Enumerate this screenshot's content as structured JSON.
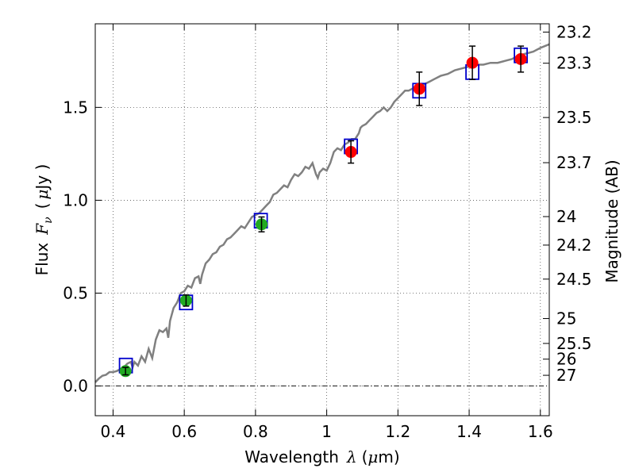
{
  "chart_data": {
    "type": "scatter",
    "xlabel_text": "Wavelength",
    "xlabel_symbol": "λ",
    "xlabel_unit_open": "(",
    "xlabel_unit_mu": "μ",
    "xlabel_unit_rest": "m)",
    "ylabel_text": "Flux",
    "ylabel_symbol": "F",
    "ylabel_sub": "ν",
    "ylabel_unit_open": "(",
    "ylabel_unit_mu": "μ",
    "ylabel_unit_rest": "Jy )",
    "y2label": "Magnitude (AB)",
    "xlim": [
      0.35,
      1.625
    ],
    "ylim": [
      -0.16,
      1.95
    ],
    "grid": true,
    "x_ticks": [
      {
        "value": 0.4,
        "label": "0.4"
      },
      {
        "value": 0.6,
        "label": "0.6"
      },
      {
        "value": 0.8,
        "label": "0.8"
      },
      {
        "value": 1.0,
        "label": "1"
      },
      {
        "value": 1.2,
        "label": "1.2"
      },
      {
        "value": 1.4,
        "label": "1.4"
      },
      {
        "value": 1.6,
        "label": "1.6"
      }
    ],
    "y_ticks": [
      {
        "value": 0.0,
        "label": "0.0"
      },
      {
        "value": 0.5,
        "label": "0.5"
      },
      {
        "value": 1.0,
        "label": "1.0"
      },
      {
        "value": 1.5,
        "label": "1.5"
      }
    ],
    "mag_ticks": [
      {
        "value": 23.2,
        "label": "23.2"
      },
      {
        "value": 23.3,
        "label": "23.3"
      },
      {
        "value": 23.5,
        "label": "23.5"
      },
      {
        "value": 23.7,
        "label": "23.7"
      },
      {
        "value": 24,
        "label": "24"
      },
      {
        "value": 24.2,
        "label": "24.2"
      },
      {
        "value": 24.5,
        "label": "24.5"
      },
      {
        "value": 25,
        "label": "25"
      },
      {
        "value": 25.5,
        "label": "25.5"
      },
      {
        "value": 26,
        "label": "26"
      },
      {
        "value": 27,
        "label": "27"
      }
    ],
    "colors": {
      "model": "#808080",
      "model_points": "#0000cc",
      "optical": "#22aa22",
      "nir": "#ff0000",
      "error": "#000000",
      "grid": "#555555",
      "zero_line": "#000000"
    },
    "model_spectrum": [
      [
        0.35,
        0.02
      ],
      [
        0.36,
        0.04
      ],
      [
        0.37,
        0.055
      ],
      [
        0.38,
        0.06
      ],
      [
        0.39,
        0.075
      ],
      [
        0.4,
        0.075
      ],
      [
        0.41,
        0.08
      ],
      [
        0.42,
        0.09
      ],
      [
        0.43,
        0.1
      ],
      [
        0.44,
        0.12
      ],
      [
        0.45,
        0.13
      ],
      [
        0.455,
        0.1
      ],
      [
        0.46,
        0.13
      ],
      [
        0.47,
        0.11
      ],
      [
        0.48,
        0.16
      ],
      [
        0.49,
        0.13
      ],
      [
        0.5,
        0.2
      ],
      [
        0.51,
        0.15
      ],
      [
        0.52,
        0.25
      ],
      [
        0.53,
        0.3
      ],
      [
        0.54,
        0.29
      ],
      [
        0.55,
        0.31
      ],
      [
        0.555,
        0.26
      ],
      [
        0.56,
        0.35
      ],
      [
        0.57,
        0.42
      ],
      [
        0.58,
        0.45
      ],
      [
        0.59,
        0.5
      ],
      [
        0.6,
        0.51
      ],
      [
        0.61,
        0.54
      ],
      [
        0.62,
        0.53
      ],
      [
        0.63,
        0.58
      ],
      [
        0.64,
        0.59
      ],
      [
        0.645,
        0.55
      ],
      [
        0.65,
        0.6
      ],
      [
        0.66,
        0.66
      ],
      [
        0.67,
        0.68
      ],
      [
        0.68,
        0.71
      ],
      [
        0.69,
        0.72
      ],
      [
        0.7,
        0.75
      ],
      [
        0.71,
        0.76
      ],
      [
        0.72,
        0.79
      ],
      [
        0.73,
        0.8
      ],
      [
        0.74,
        0.82
      ],
      [
        0.75,
        0.84
      ],
      [
        0.76,
        0.86
      ],
      [
        0.77,
        0.85
      ],
      [
        0.78,
        0.88
      ],
      [
        0.79,
        0.91
      ],
      [
        0.8,
        0.92
      ],
      [
        0.81,
        0.93
      ],
      [
        0.82,
        0.95
      ],
      [
        0.83,
        0.97
      ],
      [
        0.84,
        0.99
      ],
      [
        0.85,
        1.03
      ],
      [
        0.86,
        1.04
      ],
      [
        0.87,
        1.06
      ],
      [
        0.88,
        1.08
      ],
      [
        0.89,
        1.07
      ],
      [
        0.9,
        1.11
      ],
      [
        0.91,
        1.14
      ],
      [
        0.92,
        1.13
      ],
      [
        0.93,
        1.15
      ],
      [
        0.94,
        1.18
      ],
      [
        0.95,
        1.17
      ],
      [
        0.96,
        1.2
      ],
      [
        0.965,
        1.17
      ],
      [
        0.97,
        1.14
      ],
      [
        0.975,
        1.12
      ],
      [
        0.98,
        1.15
      ],
      [
        0.99,
        1.17
      ],
      [
        1.0,
        1.16
      ],
      [
        1.01,
        1.2
      ],
      [
        1.02,
        1.26
      ],
      [
        1.03,
        1.28
      ],
      [
        1.04,
        1.27
      ],
      [
        1.05,
        1.3
      ],
      [
        1.06,
        1.31
      ],
      [
        1.07,
        1.33
      ],
      [
        1.08,
        1.33
      ],
      [
        1.09,
        1.36
      ],
      [
        1.095,
        1.39
      ],
      [
        1.1,
        1.4
      ],
      [
        1.11,
        1.41
      ],
      [
        1.12,
        1.43
      ],
      [
        1.13,
        1.45
      ],
      [
        1.14,
        1.47
      ],
      [
        1.15,
        1.48
      ],
      [
        1.16,
        1.5
      ],
      [
        1.17,
        1.48
      ],
      [
        1.18,
        1.5
      ],
      [
        1.19,
        1.53
      ],
      [
        1.2,
        1.55
      ],
      [
        1.21,
        1.57
      ],
      [
        1.22,
        1.59
      ],
      [
        1.23,
        1.59
      ],
      [
        1.24,
        1.6
      ],
      [
        1.25,
        1.6
      ],
      [
        1.26,
        1.61
      ],
      [
        1.27,
        1.62
      ],
      [
        1.28,
        1.63
      ],
      [
        1.29,
        1.64
      ],
      [
        1.3,
        1.65
      ],
      [
        1.32,
        1.67
      ],
      [
        1.34,
        1.68
      ],
      [
        1.36,
        1.7
      ],
      [
        1.38,
        1.71
      ],
      [
        1.4,
        1.72
      ],
      [
        1.42,
        1.73
      ],
      [
        1.44,
        1.73
      ],
      [
        1.46,
        1.74
      ],
      [
        1.48,
        1.74
      ],
      [
        1.5,
        1.75
      ],
      [
        1.52,
        1.76
      ],
      [
        1.54,
        1.78
      ],
      [
        1.56,
        1.79
      ],
      [
        1.58,
        1.8
      ],
      [
        1.6,
        1.82
      ],
      [
        1.625,
        1.84
      ]
    ],
    "model_photometry": [
      {
        "x": 0.436,
        "y": 0.11
      },
      {
        "x": 0.605,
        "y": 0.45
      },
      {
        "x": 0.815,
        "y": 0.89
      },
      {
        "x": 1.068,
        "y": 1.29
      },
      {
        "x": 1.26,
        "y": 1.59
      },
      {
        "x": 1.409,
        "y": 1.69
      },
      {
        "x": 1.545,
        "y": 1.78
      }
    ],
    "observed_photometry": [
      {
        "band": "optical",
        "x": 0.435,
        "y": 0.08,
        "err": 0.02
      },
      {
        "band": "optical",
        "x": 0.605,
        "y": 0.46,
        "err": 0.03
      },
      {
        "band": "optical",
        "x": 0.817,
        "y": 0.87,
        "err": 0.04
      },
      {
        "band": "nir",
        "x": 1.068,
        "y": 1.26,
        "err": 0.06
      },
      {
        "band": "nir",
        "x": 1.26,
        "y": 1.6,
        "err": 0.09
      },
      {
        "band": "nir",
        "x": 1.409,
        "y": 1.74,
        "err": 0.09
      },
      {
        "band": "nir",
        "x": 1.545,
        "y": 1.76,
        "err": 0.07
      }
    ]
  }
}
